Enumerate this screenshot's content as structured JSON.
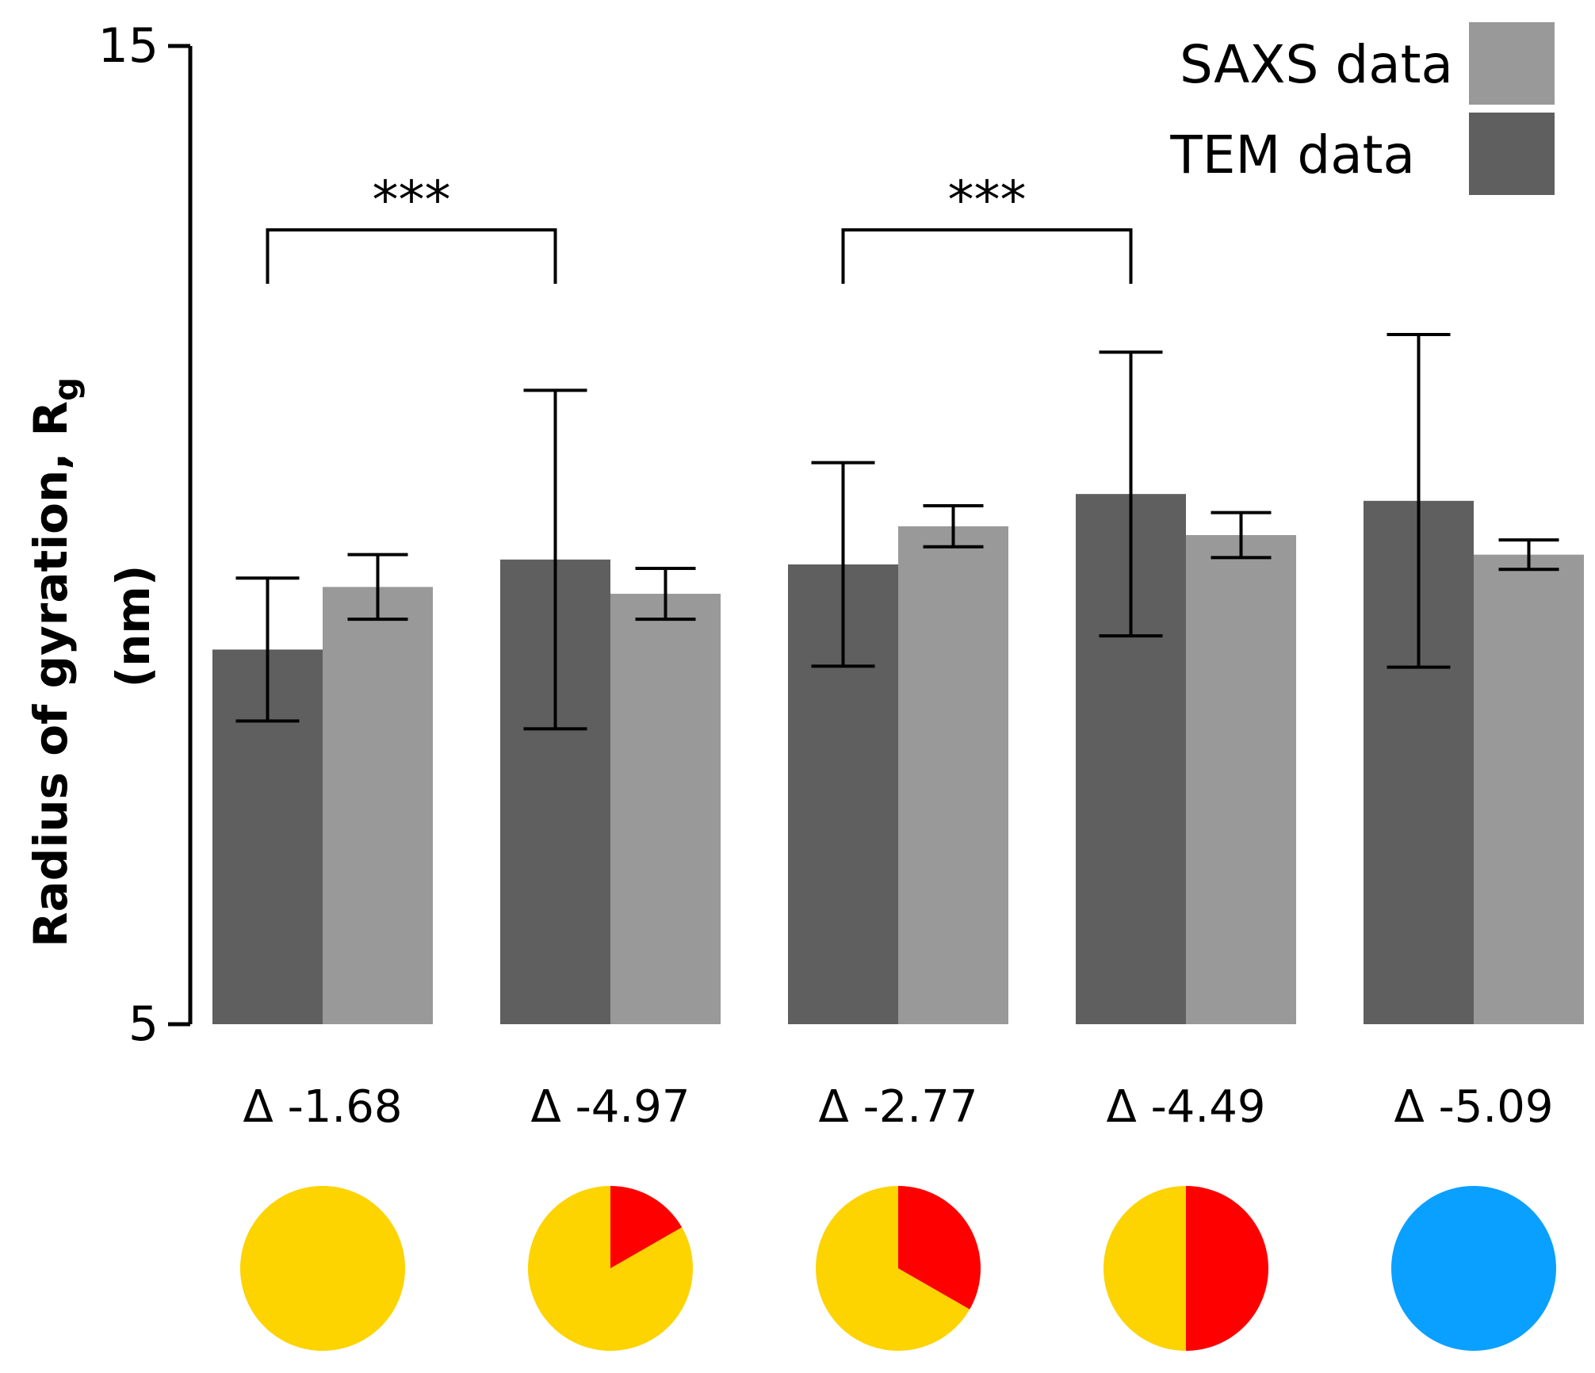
{
  "chart_data": {
    "type": "bar",
    "ylabel_line1": "Radius of gyration, R",
    "ylabel_subscript": "g",
    "ylabel_line2": "(nm)",
    "ylim": [
      5,
      15
    ],
    "y_ticks": [
      {
        "value": 5,
        "label": "5"
      },
      {
        "value": 15,
        "label": "15"
      }
    ],
    "categories": [
      "Δ -1.68",
      "Δ -4.97",
      "Δ -2.77",
      "Δ -4.49",
      "Δ -5.09"
    ],
    "series": [
      {
        "name": "TEM data",
        "color": "#5f5f5f",
        "values": [
          8.83,
          9.75,
          9.7,
          10.42,
          10.35
        ],
        "errors": [
          0.73,
          1.73,
          1.04,
          1.45,
          1.7
        ]
      },
      {
        "name": "SAXS data",
        "color": "#999999",
        "values": [
          9.47,
          9.4,
          10.09,
          10.0,
          9.8
        ],
        "errors": [
          0.33,
          0.26,
          0.21,
          0.23,
          0.15
        ]
      }
    ],
    "legend": {
      "position": "top-right",
      "items": [
        {
          "label": "SAXS data",
          "color": "#999999"
        },
        {
          "label": "TEM data",
          "color": "#5f5f5f"
        }
      ]
    },
    "significance": [
      {
        "from": 0,
        "to": 1,
        "label": "***"
      },
      {
        "from": 2,
        "to": 3,
        "label": "***"
      }
    ],
    "pies": [
      {
        "category": "Δ -1.68",
        "slices": [
          {
            "color": "#fdd300",
            "fraction": 1.0
          }
        ]
      },
      {
        "category": "Δ -4.97",
        "slices": [
          {
            "color": "#ff0000",
            "fraction": 0.167
          },
          {
            "color": "#fdd300",
            "fraction": 0.833
          }
        ]
      },
      {
        "category": "Δ -2.77",
        "slices": [
          {
            "color": "#ff0000",
            "fraction": 0.333
          },
          {
            "color": "#fdd300",
            "fraction": 0.667
          }
        ]
      },
      {
        "category": "Δ -4.49",
        "slices": [
          {
            "color": "#ff0000",
            "fraction": 0.5
          },
          {
            "color": "#fdd300",
            "fraction": 0.5
          }
        ]
      },
      {
        "category": "Δ -5.09",
        "slices": [
          {
            "color": "#0aa0ff",
            "fraction": 1.0
          }
        ]
      }
    ]
  }
}
